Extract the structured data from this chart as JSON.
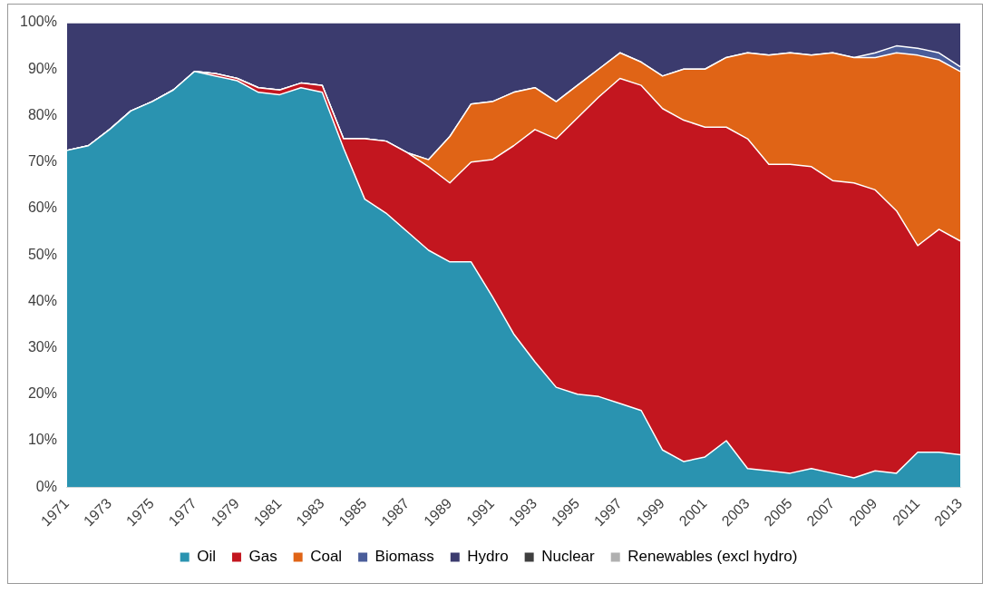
{
  "chart_data": {
    "type": "area",
    "stacked": true,
    "legend": "bottom",
    "marker": "none",
    "grid": false,
    "categories": [
      "1971",
      null,
      "1973",
      null,
      "1975",
      null,
      "1977",
      null,
      "1979",
      null,
      "1981",
      null,
      "1983",
      null,
      "1985",
      null,
      "1987",
      null,
      "1989",
      null,
      "1991",
      null,
      "1993",
      null,
      "1995",
      null,
      "1997",
      null,
      "1999",
      null,
      "2001",
      null,
      "2003",
      null,
      "2005",
      null,
      "2007",
      null,
      "2009",
      null,
      "2011",
      null,
      "2013"
    ],
    "ylim": [
      0,
      100
    ],
    "yticks": [
      {
        "value": 0,
        "label": "0%"
      },
      {
        "value": 10,
        "label": "10%"
      },
      {
        "value": 20,
        "label": "20%"
      },
      {
        "value": 30,
        "label": "30%"
      },
      {
        "value": 40,
        "label": "40%"
      },
      {
        "value": 50,
        "label": "50%"
      },
      {
        "value": 60,
        "label": "60%"
      },
      {
        "value": 70,
        "label": "70%"
      },
      {
        "value": 80,
        "label": "80%"
      },
      {
        "value": 90,
        "label": "90%"
      },
      {
        "value": 100,
        "label": "100%"
      }
    ],
    "series": [
      {
        "name": "Oil",
        "color": "#2a93b0",
        "values": [
          72.5,
          73.5,
          77,
          81,
          83,
          85.5,
          89.5,
          88.5,
          87.5,
          85,
          84.5,
          86,
          85,
          73,
          62,
          59,
          55,
          51,
          48.5,
          48.5,
          41,
          33,
          27,
          21.5,
          20,
          19.5,
          18,
          16.5,
          8,
          5.5,
          6.5,
          10,
          4,
          3.5,
          3,
          4,
          3,
          2,
          3.5,
          3,
          7.5,
          7.5,
          7
        ]
      },
      {
        "name": "Gas",
        "color": "#c3161f",
        "values": [
          0,
          0,
          0,
          0,
          0,
          0,
          0,
          0.5,
          0.5,
          1,
          1,
          1,
          1.5,
          2,
          13,
          15.5,
          17,
          18,
          17,
          21.5,
          29.5,
          40.5,
          50,
          53.5,
          59.5,
          64.5,
          70,
          70,
          73.5,
          73.5,
          71,
          67.5,
          71,
          66,
          66.5,
          65,
          63,
          63.5,
          60.5,
          56.5,
          44.5,
          48,
          46
        ]
      },
      {
        "name": "Coal",
        "color": "#e06416",
        "values": [
          0,
          0,
          0,
          0,
          0,
          0,
          0,
          0,
          0,
          0,
          0,
          0,
          0,
          0,
          0,
          0,
          0,
          1.5,
          10,
          12.5,
          12.5,
          11.5,
          9,
          8,
          7,
          6,
          5.5,
          5,
          7,
          11,
          12.5,
          15,
          18.5,
          23.5,
          24,
          24,
          27.5,
          27,
          28.5,
          34,
          41,
          36.5,
          36.5
        ]
      },
      {
        "name": "Biomass",
        "color": "#4a5d9a",
        "values": [
          0,
          0,
          0,
          0,
          0,
          0,
          0,
          0,
          0,
          0,
          0,
          0,
          0,
          0,
          0,
          0,
          0,
          0,
          0,
          0,
          0,
          0,
          0,
          0,
          0,
          0,
          0,
          0,
          0,
          0,
          0,
          0,
          0,
          0,
          0,
          0,
          0,
          0,
          1,
          1.5,
          1.5,
          1.5,
          1
        ]
      },
      {
        "name": "Hydro",
        "color": "#3b3b6e",
        "values": [
          27.5,
          26.5,
          23,
          19,
          17,
          14.5,
          10.5,
          11,
          12,
          14,
          14.5,
          13,
          13.5,
          25,
          25,
          25.5,
          28,
          29.5,
          24.5,
          17.5,
          17,
          15,
          14,
          17,
          13.5,
          10,
          6.5,
          8.5,
          11.5,
          10,
          10,
          7.5,
          6.5,
          7,
          6.5,
          7,
          6.5,
          7.5,
          6.5,
          5,
          5.5,
          6.5,
          9.5
        ]
      },
      {
        "name": "Nuclear",
        "color": "#3f3f3f",
        "values": [
          null,
          null,
          null,
          null,
          null,
          null,
          null,
          null,
          null,
          null,
          null,
          null,
          null,
          null,
          null,
          null,
          null,
          null,
          null,
          null,
          null,
          null,
          null,
          null,
          null,
          null,
          null,
          null,
          null,
          null,
          null,
          null,
          null,
          null,
          null,
          null,
          null,
          null,
          null,
          null,
          null,
          null,
          null
        ]
      },
      {
        "name": "Renewables (excl hydro)",
        "color": "#b0b0b0",
        "values": [
          null,
          null,
          null,
          null,
          null,
          null,
          null,
          null,
          null,
          null,
          null,
          null,
          null,
          null,
          null,
          null,
          null,
          null,
          null,
          null,
          null,
          null,
          null,
          null,
          null,
          null,
          null,
          null,
          null,
          null,
          null,
          null,
          null,
          null,
          null,
          null,
          null,
          null,
          null,
          null,
          null,
          null,
          null
        ]
      }
    ]
  }
}
